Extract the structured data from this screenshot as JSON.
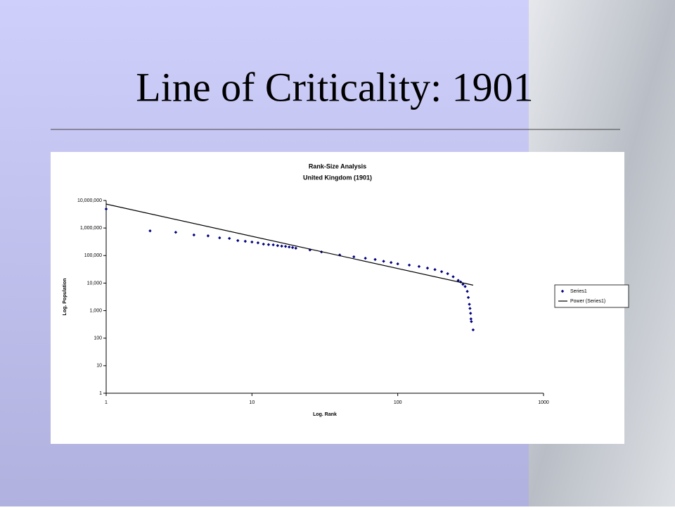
{
  "slide_title": "Line of Criticality: 1901",
  "chart_data": {
    "type": "scatter",
    "title": "Rank-Size Analysis",
    "subtitle": "United Kingdom (1901)",
    "x_label": "Log. Rank",
    "y_label": "Log. Population",
    "xscale": "log",
    "yscale": "log",
    "xlim": [
      1,
      1000
    ],
    "xticks": [
      1,
      10,
      100,
      1000
    ],
    "ylim": [
      1,
      10000000
    ],
    "yticks": [
      1,
      10,
      100,
      {
        "value": 1000,
        "label": "1,000"
      },
      {
        "value": 10000,
        "label": "10,000"
      },
      {
        "value": 100000,
        "label": "100,000"
      },
      {
        "value": 1000000,
        "label": "1,000,000"
      },
      {
        "value": 10000000,
        "label": "10,000,000"
      }
    ],
    "grid": false,
    "legend": "right",
    "series": [
      {
        "name": "Series1",
        "color": "#000080",
        "style": "markers",
        "x": [
          1,
          2,
          3,
          4,
          5,
          6,
          7,
          8,
          9,
          10,
          11,
          12,
          13,
          14,
          15,
          16,
          17,
          18,
          19,
          20,
          25,
          30,
          40,
          50,
          60,
          70,
          80,
          90,
          100,
          120,
          140,
          160,
          180,
          200,
          220,
          240,
          260,
          270,
          280,
          290,
          300,
          305,
          310,
          313,
          316,
          318,
          320,
          329
        ],
        "values": [
          4900000,
          790000,
          700000,
          560000,
          520000,
          440000,
          420000,
          350000,
          330000,
          310000,
          290000,
          260000,
          250000,
          245000,
          230000,
          220000,
          215000,
          205000,
          195000,
          185000,
          160000,
          135000,
          105000,
          90000,
          80000,
          72000,
          62000,
          56000,
          50000,
          45000,
          40000,
          35000,
          31000,
          26000,
          22000,
          17000,
          12500,
          11000,
          9000,
          7500,
          5000,
          3000,
          1700,
          1200,
          800,
          500,
          400,
          200
        ]
      },
      {
        "name": "Power (Series1)",
        "color": "#000000",
        "style": "line",
        "x": [
          1,
          329
        ],
        "values": [
          7400000,
          8400
        ]
      }
    ]
  }
}
